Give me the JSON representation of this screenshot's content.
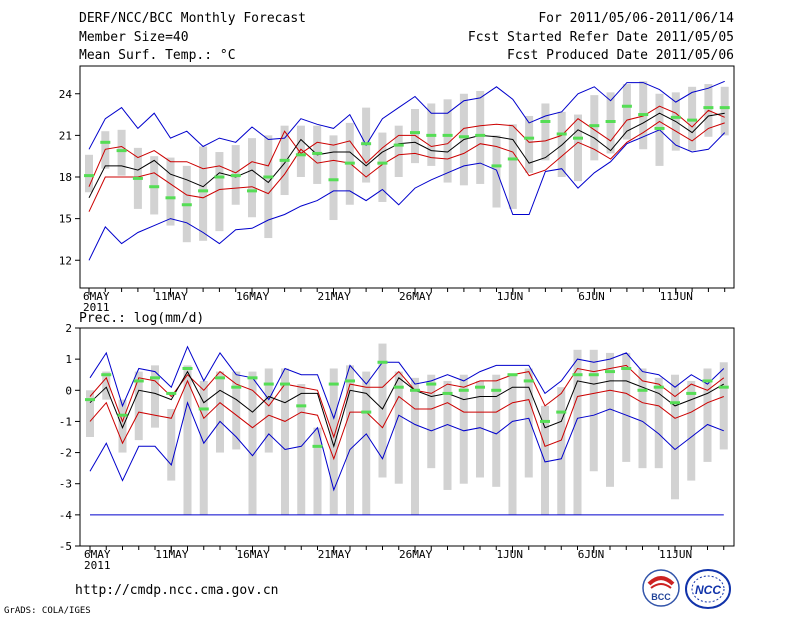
{
  "header": {
    "title": "DERF/NCC/BCC Monthly Forecast",
    "member_size": "Member Size=40",
    "variable": "Mean Surf. Temp.: °C",
    "period": "For 2011/05/06-2011/06/14",
    "started": "Fcst Started Refer Date 2011/05/05",
    "produced": "Fcst Produced Date 2011/05/06"
  },
  "footer": {
    "url": "http://cmdp.ncc.cma.gov.cn",
    "credit": "GrADS: COLA/IGES"
  },
  "logos": {
    "bcc": "BCC",
    "ncc": "NCC"
  },
  "colors": {
    "max_min": "#0000cc",
    "quartile": "#cc0000",
    "median": "#000000",
    "obs_bar": "#d2d2d2",
    "marker": "#55dd55"
  },
  "chart_data": [
    {
      "type": "line",
      "title": "Mean Surf. Temp.: °C",
      "ylim": [
        10,
        26
      ],
      "yticks": [
        12,
        15,
        18,
        21,
        24
      ],
      "xticks": [
        {
          "day": 0,
          "label": "6MAY",
          "sub": "2011"
        },
        {
          "day": 5,
          "label": "11MAY"
        },
        {
          "day": 10,
          "label": "16MAY"
        },
        {
          "day": 15,
          "label": "21MAY"
        },
        {
          "day": 20,
          "label": "26MAY"
        },
        {
          "day": 26,
          "label": "1JUN"
        },
        {
          "day": 31,
          "label": "6JUN"
        },
        {
          "day": 36,
          "label": "11JUN"
        }
      ],
      "days": 40,
      "series": [
        {
          "name": "max",
          "values": [
            20.0,
            22.2,
            23.0,
            21.5,
            22.6,
            20.8,
            21.3,
            20.2,
            20.8,
            20.5,
            21.6,
            20.7,
            20.8,
            22.2,
            21.8,
            21.5,
            22.5,
            20.3,
            22.2,
            23.0,
            23.8,
            22.6,
            22.6,
            23.5,
            23.7,
            24.5,
            23.6,
            21.9,
            22.4,
            22.7,
            24.0,
            24.5,
            23.5,
            24.8,
            24.8,
            24.3,
            23.4,
            24.1,
            24.4,
            24.9
          ]
        },
        {
          "name": "upper_quartile",
          "values": [
            17.3,
            20.0,
            20.2,
            19.4,
            19.9,
            19.1,
            19.1,
            18.6,
            18.8,
            18.3,
            19.1,
            18.8,
            21.3,
            19.7,
            20.5,
            20.3,
            20.6,
            19.0,
            20.1,
            21.0,
            21.0,
            20.2,
            20.4,
            21.5,
            21.7,
            21.8,
            21.7,
            20.5,
            20.6,
            21.0,
            22.2,
            21.4,
            20.6,
            22.1,
            22.4,
            23.1,
            22.6,
            21.6,
            22.8,
            22.3
          ]
        },
        {
          "name": "median",
          "values": [
            16.5,
            18.8,
            18.8,
            18.5,
            19.2,
            18.2,
            17.8,
            17.3,
            18.3,
            18.0,
            18.5,
            17.6,
            19.0,
            20.7,
            19.6,
            19.8,
            19.8,
            18.8,
            19.8,
            20.4,
            20.5,
            19.9,
            19.8,
            20.7,
            21.0,
            20.9,
            20.7,
            19.0,
            19.4,
            20.3,
            21.4,
            20.8,
            19.9,
            21.3,
            21.9,
            22.6,
            22.0,
            21.2,
            22.4,
            22.6
          ]
        },
        {
          "name": "lower_quartile",
          "values": [
            15.5,
            18.0,
            18.0,
            18.0,
            18.3,
            17.5,
            16.7,
            16.5,
            17.1,
            17.2,
            17.3,
            16.8,
            18.2,
            20.0,
            19.0,
            19.2,
            19.0,
            18.0,
            18.9,
            19.6,
            19.7,
            19.4,
            19.3,
            19.7,
            20.4,
            20.2,
            19.8,
            18.1,
            18.5,
            19.5,
            20.5,
            20.0,
            19.3,
            20.5,
            21.2,
            22.0,
            21.3,
            20.6,
            21.5,
            21.9
          ]
        },
        {
          "name": "min",
          "values": [
            12.0,
            14.4,
            13.2,
            14.0,
            14.5,
            15.0,
            14.7,
            14.0,
            13.2,
            14.2,
            14.3,
            14.9,
            15.3,
            15.9,
            16.3,
            17.0,
            17.0,
            16.3,
            17.1,
            16.0,
            17.2,
            17.8,
            18.3,
            18.8,
            19.0,
            18.5,
            15.3,
            15.3,
            18.4,
            18.6,
            17.2,
            18.3,
            19.1,
            20.4,
            20.9,
            21.4,
            20.3,
            19.8,
            20.0,
            21.2
          ]
        },
        {
          "name": "observed",
          "values": [
            18.1,
            20.5,
            19.9,
            17.9,
            17.3,
            16.5,
            16.0,
            17.0,
            18.0,
            18.1,
            17.0,
            18.0,
            19.2,
            19.6,
            19.7,
            17.8,
            19.0,
            20.4,
            19.0,
            20.3,
            21.2,
            21.0,
            21.0,
            20.9,
            21.0,
            18.8,
            19.3,
            20.8,
            22.0,
            21.1,
            20.8,
            21.7,
            22.0,
            23.1,
            22.5,
            21.5,
            22.3,
            22.1,
            23.0,
            23.0
          ]
        }
      ],
      "bar_low": [
        16.9,
        18.6,
        18.1,
        15.7,
        15.3,
        14.5,
        13.3,
        13.4,
        14.1,
        16.0,
        15.1,
        13.6,
        16.7,
        18.0,
        17.5,
        14.9,
        16.0,
        17.6,
        16.2,
        18.0,
        19.0,
        18.8,
        17.6,
        17.4,
        17.5,
        15.8,
        15.7,
        18.3,
        19.2,
        18.0,
        17.7,
        19.2,
        19.7,
        20.7,
        20.0,
        18.8,
        19.9,
        19.9,
        20.9,
        21.0
      ],
      "bar_high": [
        19.6,
        21.3,
        21.4,
        20.1,
        19.5,
        19.4,
        18.8,
        20.2,
        19.8,
        20.3,
        20.8,
        21.0,
        21.7,
        21.7,
        21.7,
        21.0,
        21.9,
        23.0,
        21.2,
        21.7,
        22.9,
        23.3,
        23.6,
        24.0,
        24.2,
        21.0,
        21.8,
        22.4,
        23.3,
        22.7,
        22.5,
        23.9,
        24.1,
        24.7,
        24.9,
        24.0,
        24.1,
        24.5,
        24.7,
        24.5
      ]
    },
    {
      "type": "line",
      "title": "Prec.: log(mm/d)",
      "ylim": [
        -5,
        2
      ],
      "yticks": [
        -5,
        -4,
        -3,
        -2,
        -1,
        0,
        1,
        2
      ],
      "xticks": [
        {
          "day": 0,
          "label": "6MAY",
          "sub": "2011"
        },
        {
          "day": 5,
          "label": "11MAY"
        },
        {
          "day": 10,
          "label": "16MAY"
        },
        {
          "day": 15,
          "label": "21MAY"
        },
        {
          "day": 20,
          "label": "26MAY"
        },
        {
          "day": 26,
          "label": "1JUN"
        },
        {
          "day": 31,
          "label": "6JUN"
        },
        {
          "day": 36,
          "label": "11JUN"
        }
      ],
      "days": 40,
      "series": [
        {
          "name": "max",
          "values": [
            0.4,
            1.2,
            -0.5,
            0.7,
            0.6,
            0.1,
            1.4,
            0.3,
            1.2,
            0.5,
            0.4,
            -0.3,
            0.7,
            0.5,
            0.5,
            -0.9,
            0.8,
            0.2,
            0.9,
            0.9,
            0.2,
            0.3,
            0.5,
            0.3,
            0.6,
            0.8,
            0.8,
            0.8,
            -0.1,
            0.3,
            1.0,
            0.9,
            1.0,
            1.2,
            0.6,
            0.5,
            0.1,
            0.5,
            0.2,
            0.7
          ]
        },
        {
          "name": "upper_quartile",
          "values": [
            -0.2,
            0.4,
            -1.0,
            0.4,
            0.3,
            -0.2,
            0.5,
            0.0,
            0.6,
            0.2,
            0.0,
            -0.5,
            0.2,
            0.1,
            0.0,
            -1.5,
            0.2,
            0.1,
            0.1,
            0.6,
            0.0,
            -0.1,
            0.2,
            0.1,
            0.3,
            0.3,
            0.5,
            0.6,
            -0.5,
            -0.1,
            0.7,
            0.6,
            0.7,
            0.8,
            0.3,
            0.2,
            -0.2,
            0.2,
            0.0,
            0.4
          ]
        },
        {
          "name": "median",
          "values": [
            -0.4,
            0.1,
            -1.2,
            0.0,
            -0.1,
            -0.3,
            0.6,
            -0.4,
            0.0,
            -0.3,
            -0.7,
            -0.2,
            -0.4,
            -0.1,
            -0.1,
            -1.8,
            0.0,
            -0.1,
            -0.6,
            0.4,
            0.0,
            -0.2,
            -0.1,
            -0.3,
            -0.2,
            -0.2,
            0.1,
            0.1,
            -1.2,
            -1.0,
            0.3,
            0.2,
            0.3,
            0.3,
            0.1,
            -0.1,
            -0.5,
            -0.3,
            -0.1,
            0.2
          ]
        },
        {
          "name": "lower_quartile",
          "values": [
            -1.0,
            -0.4,
            -1.7,
            -0.7,
            -0.8,
            -0.9,
            0.3,
            -0.9,
            -0.4,
            -0.8,
            -1.2,
            -0.8,
            -1.0,
            -0.7,
            -0.8,
            -2.2,
            -0.7,
            -0.7,
            -1.2,
            -0.2,
            -0.6,
            -0.6,
            -0.4,
            -0.7,
            -0.7,
            -0.7,
            -0.4,
            -0.3,
            -1.8,
            -1.6,
            -0.2,
            -0.1,
            0.0,
            -0.1,
            -0.4,
            -0.5,
            -0.9,
            -0.7,
            -0.4,
            -0.2
          ]
        },
        {
          "name": "min",
          "values": [
            -2.6,
            -1.7,
            -2.9,
            -1.8,
            -1.8,
            -2.4,
            -0.4,
            -1.7,
            -1.0,
            -1.5,
            -2.1,
            -1.4,
            -1.9,
            -1.8,
            -1.2,
            -3.2,
            -1.9,
            -1.4,
            -2.2,
            -0.8,
            -1.1,
            -1.3,
            -1.1,
            -1.3,
            -1.2,
            -1.4,
            -1.0,
            -0.9,
            -2.3,
            -2.2,
            -0.9,
            -0.8,
            -0.6,
            -0.8,
            -1.0,
            -1.4,
            -1.9,
            -1.5,
            -1.1,
            -1.3
          ]
        },
        {
          "name": "observed",
          "values": [
            -0.3,
            0.5,
            -0.8,
            0.3,
            0.4,
            -0.1,
            0.7,
            -0.6,
            0.4,
            0.1,
            0.4,
            0.2,
            0.2,
            -0.5,
            -1.8,
            0.2,
            0.3,
            -0.7,
            0.9,
            0.1,
            0.0,
            0.2,
            -0.1,
            0.0,
            0.1,
            0.0,
            0.5,
            0.3,
            -1.0,
            -0.7,
            0.5,
            0.5,
            0.6,
            0.7,
            0.0,
            0.1,
            -0.4,
            -0.1,
            0.3,
            0.1
          ]
        },
        {
          "name": "floor",
          "values": [
            -4,
            -4,
            -4,
            -4,
            -4,
            -4,
            -4,
            -4,
            -4,
            -4,
            -4,
            -4,
            -4,
            -4,
            -4,
            -4,
            -4,
            -4,
            -4,
            -4,
            -4,
            -4,
            -4,
            -4,
            -4,
            -4,
            -4,
            -4,
            -4,
            -4,
            -4,
            -4,
            -4,
            -4,
            -4,
            -4,
            -4,
            -4,
            -4,
            -4
          ]
        }
      ],
      "bar_low": [
        -1.5,
        -0.3,
        -2.0,
        -1.6,
        -1.2,
        -2.9,
        -4.0,
        -4.0,
        -2.0,
        -1.9,
        -4.0,
        -2.0,
        -4.0,
        -4.0,
        -4.0,
        -4.0,
        -4.0,
        -4.0,
        -2.8,
        -3.0,
        -4.0,
        -2.5,
        -3.2,
        -3.0,
        -2.8,
        -3.1,
        -4.0,
        -2.8,
        -4.0,
        -4.0,
        -4.0,
        -2.6,
        -3.1,
        -2.3,
        -2.5,
        -2.5,
        -3.5,
        -2.9,
        -2.3,
        -1.9
      ],
      "bar_high": [
        0.0,
        0.6,
        -0.3,
        0.6,
        0.8,
        -0.6,
        0.8,
        0.3,
        0.6,
        0.6,
        0.6,
        0.7,
        0.7,
        0.2,
        -1.2,
        0.7,
        0.8,
        0.6,
        1.5,
        0.6,
        0.4,
        0.5,
        0.3,
        0.5,
        0.3,
        0.5,
        0.5,
        0.7,
        -0.5,
        0.1,
        1.3,
        1.3,
        1.2,
        1.2,
        0.7,
        0.4,
        0.5,
        0.3,
        0.7,
        0.9
      ]
    }
  ]
}
